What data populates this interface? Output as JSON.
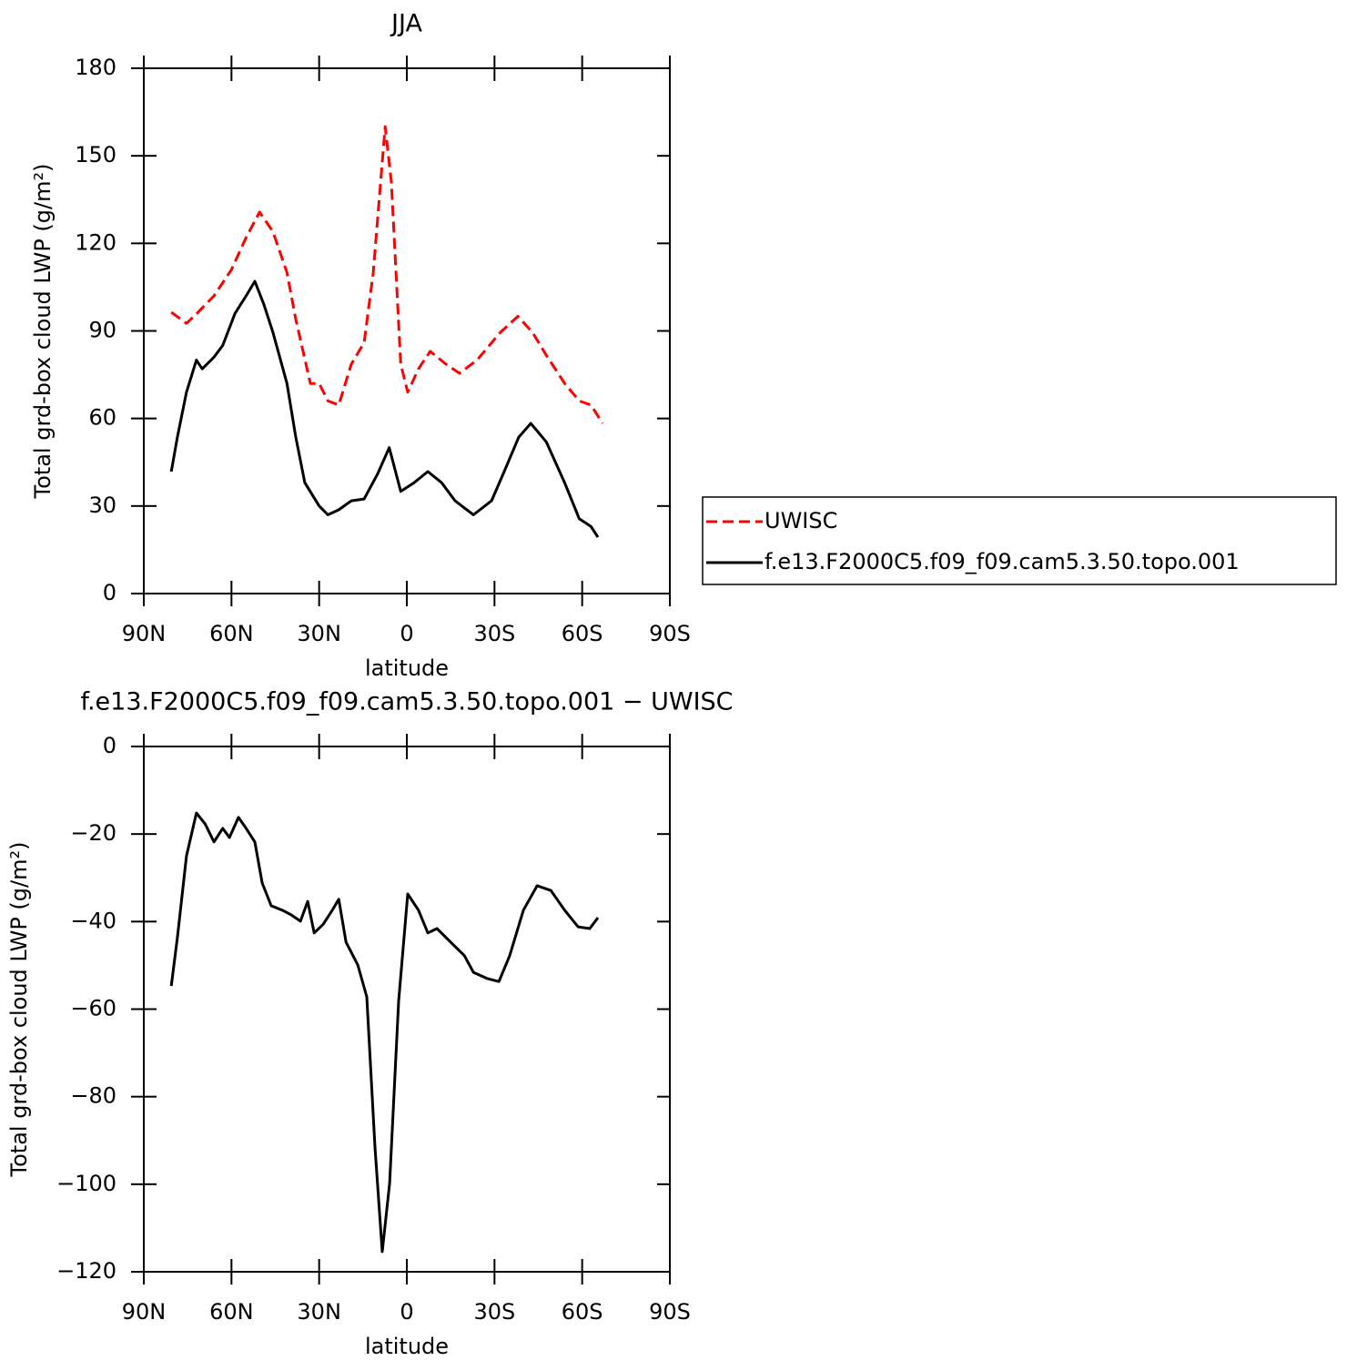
{
  "chart_data": [
    {
      "type": "line",
      "title": "JJA",
      "xlabel": "latitude",
      "ylabel": "Total grd-box cloud LWP (g/m²)",
      "xlim": [
        90,
        -90
      ],
      "xticks": [
        {
          "value": 90,
          "label": "90N"
        },
        {
          "value": 60,
          "label": "60N"
        },
        {
          "value": 30,
          "label": "30N"
        },
        0,
        {
          "value": -30,
          "label": "30S"
        },
        {
          "value": -60,
          "label": "60S"
        },
        {
          "value": -90,
          "label": "90S"
        }
      ],
      "ylim": [
        0,
        180
      ],
      "yticks": [
        0,
        30,
        60,
        90,
        120,
        150,
        180
      ],
      "legend": "right",
      "series": [
        {
          "name": "UWISC",
          "color": "#ff0000",
          "dash": true,
          "x": [
            80.6,
            75.4,
            72,
            66,
            60,
            55,
            50.4,
            45.8,
            41,
            38,
            33,
            30,
            27,
            23.3,
            19,
            14.6,
            11.5,
            7.4,
            5.3,
            2.1,
            -0.3,
            -4,
            -8,
            -13.4,
            -18,
            -24,
            -32,
            -38,
            -43,
            -47.7,
            -54,
            -59,
            -63,
            -67
          ],
          "values": [
            96.4,
            92.6,
            95.8,
            102,
            111,
            122,
            130.7,
            124,
            110,
            94,
            72,
            72,
            66,
            64.6,
            78.6,
            86,
            110,
            160,
            141,
            78.6,
            69,
            77,
            83,
            78.6,
            75.5,
            80,
            89.5,
            95,
            89.5,
            81.7,
            72,
            66,
            64.6,
            58.3
          ]
        },
        {
          "name": "f.e13.F2000C5.f09_f09.cam5.3.50.topo.001",
          "color": "#000000",
          "dash": false,
          "x": [
            80.6,
            78.5,
            75.4,
            72,
            70,
            66,
            63,
            58.8,
            55,
            52,
            48.9,
            45.8,
            41,
            38,
            34.9,
            30,
            27,
            23.3,
            19,
            14.6,
            10,
            6,
            2.1,
            -2.5,
            -7.2,
            -11.9,
            -16.5,
            -22.8,
            -29,
            -33.7,
            -38.3,
            -42.4,
            -47.7,
            -54,
            -59,
            -63,
            -65.4
          ],
          "values": [
            41.8,
            53.6,
            69,
            80,
            77,
            81,
            85,
            96,
            102,
            107,
            99,
            89.5,
            72,
            53.6,
            38,
            30,
            27,
            28.7,
            31.8,
            32.4,
            41,
            50,
            35,
            38,
            41.8,
            38,
            31.8,
            27,
            31.8,
            42.7,
            53.6,
            58.3,
            52,
            38,
            25.6,
            23,
            19.3
          ]
        }
      ]
    },
    {
      "type": "line",
      "title": "f.e13.F2000C5.f09_f09.cam5.3.50.topo.001  −  UWISC",
      "xlabel": "latitude",
      "ylabel": "Total grd-box cloud LWP (g/m²)",
      "xlim": [
        90,
        -90
      ],
      "xticks": [
        {
          "value": 90,
          "label": "90N"
        },
        {
          "value": 60,
          "label": "60N"
        },
        {
          "value": 30,
          "label": "30N"
        },
        0,
        {
          "value": -30,
          "label": "30S"
        },
        {
          "value": -60,
          "label": "60S"
        },
        {
          "value": -90,
          "label": "90S"
        }
      ],
      "ylim": [
        -120,
        0
      ],
      "yticks": [
        {
          "value": -120,
          "label": "−120"
        },
        {
          "value": -100,
          "label": "−100"
        },
        {
          "value": -80,
          "label": "−80"
        },
        {
          "value": -60,
          "label": "−60"
        },
        {
          "value": -40,
          "label": "−40"
        },
        {
          "value": -20,
          "label": "−20"
        },
        0
      ],
      "series": [
        {
          "color": "#000000",
          "dash": false,
          "x": [
            80.6,
            78.5,
            75.4,
            72,
            69,
            66,
            63,
            60.7,
            57.6,
            55,
            52,
            49.5,
            46.4,
            42.6,
            39.5,
            36.4,
            33.9,
            31.7,
            28.6,
            25.5,
            23.3,
            20.8,
            16.8,
            13.7,
            10.9,
            8.4,
            5.9,
            2.8,
            -0.3,
            -4,
            -7.2,
            -10.3,
            -15,
            -19.7,
            -22.8,
            -27.4,
            -31.5,
            -35.2,
            -39.9,
            -44.6,
            -49.3,
            -54,
            -58.6,
            -62.6,
            -65.4
          ],
          "values": [
            -54.7,
            -43.7,
            -25,
            -15.2,
            -17.7,
            -21.8,
            -18.7,
            -20.8,
            -16.2,
            -18.7,
            -21.8,
            -31.2,
            -36.4,
            -37.4,
            -38.5,
            -39.9,
            -35.4,
            -42.6,
            -40.6,
            -37.4,
            -34.9,
            -44.7,
            -49.9,
            -57.2,
            -91.5,
            -115.4,
            -99.8,
            -58.2,
            -33.7,
            -37.4,
            -42.6,
            -41.6,
            -44.7,
            -47.8,
            -51.6,
            -53,
            -53.7,
            -47.8,
            -37.4,
            -31.8,
            -32.9,
            -37.4,
            -41.2,
            -41.6,
            -39.1
          ]
        }
      ]
    }
  ]
}
